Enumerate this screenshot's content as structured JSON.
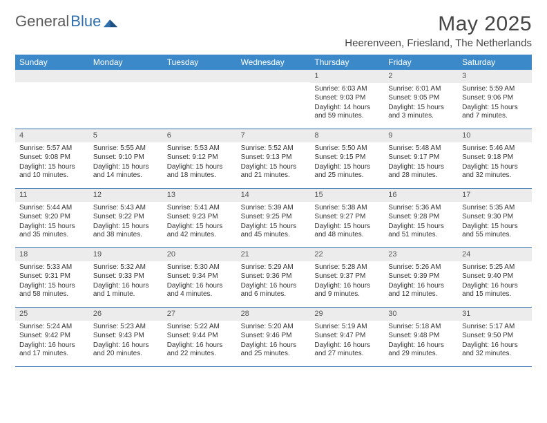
{
  "brand": {
    "part1": "General",
    "part2": "Blue"
  },
  "title": "May 2025",
  "location": "Heerenveen, Friesland, The Netherlands",
  "colors": {
    "header_bg": "#3b89c9",
    "divider": "#2f6fae",
    "daynum_bg": "#ececec",
    "text": "#333333"
  },
  "weekdays": [
    "Sunday",
    "Monday",
    "Tuesday",
    "Wednesday",
    "Thursday",
    "Friday",
    "Saturday"
  ],
  "leading_blanks": 4,
  "days": [
    {
      "n": 1,
      "sunrise": "6:03 AM",
      "sunset": "9:03 PM",
      "daylight": "14 hours and 59 minutes."
    },
    {
      "n": 2,
      "sunrise": "6:01 AM",
      "sunset": "9:05 PM",
      "daylight": "15 hours and 3 minutes."
    },
    {
      "n": 3,
      "sunrise": "5:59 AM",
      "sunset": "9:06 PM",
      "daylight": "15 hours and 7 minutes."
    },
    {
      "n": 4,
      "sunrise": "5:57 AM",
      "sunset": "9:08 PM",
      "daylight": "15 hours and 10 minutes."
    },
    {
      "n": 5,
      "sunrise": "5:55 AM",
      "sunset": "9:10 PM",
      "daylight": "15 hours and 14 minutes."
    },
    {
      "n": 6,
      "sunrise": "5:53 AM",
      "sunset": "9:12 PM",
      "daylight": "15 hours and 18 minutes."
    },
    {
      "n": 7,
      "sunrise": "5:52 AM",
      "sunset": "9:13 PM",
      "daylight": "15 hours and 21 minutes."
    },
    {
      "n": 8,
      "sunrise": "5:50 AM",
      "sunset": "9:15 PM",
      "daylight": "15 hours and 25 minutes."
    },
    {
      "n": 9,
      "sunrise": "5:48 AM",
      "sunset": "9:17 PM",
      "daylight": "15 hours and 28 minutes."
    },
    {
      "n": 10,
      "sunrise": "5:46 AM",
      "sunset": "9:18 PM",
      "daylight": "15 hours and 32 minutes."
    },
    {
      "n": 11,
      "sunrise": "5:44 AM",
      "sunset": "9:20 PM",
      "daylight": "15 hours and 35 minutes."
    },
    {
      "n": 12,
      "sunrise": "5:43 AM",
      "sunset": "9:22 PM",
      "daylight": "15 hours and 38 minutes."
    },
    {
      "n": 13,
      "sunrise": "5:41 AM",
      "sunset": "9:23 PM",
      "daylight": "15 hours and 42 minutes."
    },
    {
      "n": 14,
      "sunrise": "5:39 AM",
      "sunset": "9:25 PM",
      "daylight": "15 hours and 45 minutes."
    },
    {
      "n": 15,
      "sunrise": "5:38 AM",
      "sunset": "9:27 PM",
      "daylight": "15 hours and 48 minutes."
    },
    {
      "n": 16,
      "sunrise": "5:36 AM",
      "sunset": "9:28 PM",
      "daylight": "15 hours and 51 minutes."
    },
    {
      "n": 17,
      "sunrise": "5:35 AM",
      "sunset": "9:30 PM",
      "daylight": "15 hours and 55 minutes."
    },
    {
      "n": 18,
      "sunrise": "5:33 AM",
      "sunset": "9:31 PM",
      "daylight": "15 hours and 58 minutes."
    },
    {
      "n": 19,
      "sunrise": "5:32 AM",
      "sunset": "9:33 PM",
      "daylight": "16 hours and 1 minute."
    },
    {
      "n": 20,
      "sunrise": "5:30 AM",
      "sunset": "9:34 PM",
      "daylight": "16 hours and 4 minutes."
    },
    {
      "n": 21,
      "sunrise": "5:29 AM",
      "sunset": "9:36 PM",
      "daylight": "16 hours and 6 minutes."
    },
    {
      "n": 22,
      "sunrise": "5:28 AM",
      "sunset": "9:37 PM",
      "daylight": "16 hours and 9 minutes."
    },
    {
      "n": 23,
      "sunrise": "5:26 AM",
      "sunset": "9:39 PM",
      "daylight": "16 hours and 12 minutes."
    },
    {
      "n": 24,
      "sunrise": "5:25 AM",
      "sunset": "9:40 PM",
      "daylight": "16 hours and 15 minutes."
    },
    {
      "n": 25,
      "sunrise": "5:24 AM",
      "sunset": "9:42 PM",
      "daylight": "16 hours and 17 minutes."
    },
    {
      "n": 26,
      "sunrise": "5:23 AM",
      "sunset": "9:43 PM",
      "daylight": "16 hours and 20 minutes."
    },
    {
      "n": 27,
      "sunrise": "5:22 AM",
      "sunset": "9:44 PM",
      "daylight": "16 hours and 22 minutes."
    },
    {
      "n": 28,
      "sunrise": "5:20 AM",
      "sunset": "9:46 PM",
      "daylight": "16 hours and 25 minutes."
    },
    {
      "n": 29,
      "sunrise": "5:19 AM",
      "sunset": "9:47 PM",
      "daylight": "16 hours and 27 minutes."
    },
    {
      "n": 30,
      "sunrise": "5:18 AM",
      "sunset": "9:48 PM",
      "daylight": "16 hours and 29 minutes."
    },
    {
      "n": 31,
      "sunrise": "5:17 AM",
      "sunset": "9:50 PM",
      "daylight": "16 hours and 32 minutes."
    }
  ],
  "labels": {
    "sunrise": "Sunrise: ",
    "sunset": "Sunset: ",
    "daylight": "Daylight: "
  }
}
